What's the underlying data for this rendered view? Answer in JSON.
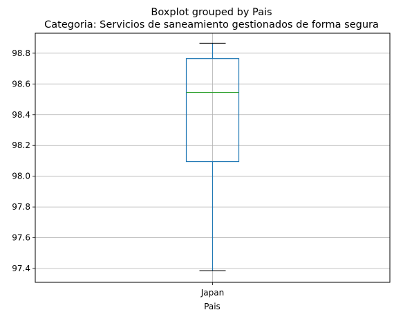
{
  "chart_data": {
    "type": "boxplot",
    "title": "Boxplot grouped by Pais",
    "subtitle": "Categoria: Servicios de saneamiento gestionados de forma segura",
    "xlabel": "Pais",
    "ylabel": "",
    "categories": [
      "Japan"
    ],
    "boxes": [
      {
        "category": "Japan",
        "whisker_low": 97.385,
        "q1": 98.095,
        "median": 98.545,
        "q3": 98.765,
        "whisker_high": 98.865
      }
    ],
    "ylim": [
      97.31,
      98.93
    ],
    "yticks": [
      97.4,
      97.6,
      97.8,
      98.0,
      98.2,
      98.4,
      98.6,
      98.8
    ],
    "ytick_labels": [
      "97.4",
      "97.6",
      "97.8",
      "98.0",
      "98.2",
      "98.4",
      "98.6",
      "98.8"
    ],
    "grid": true,
    "colors": {
      "box": "#1f77b4",
      "median": "#2ca02c",
      "whisker": "#1f77b4",
      "cap": "#000000",
      "grid": "#b0b0b0"
    }
  }
}
